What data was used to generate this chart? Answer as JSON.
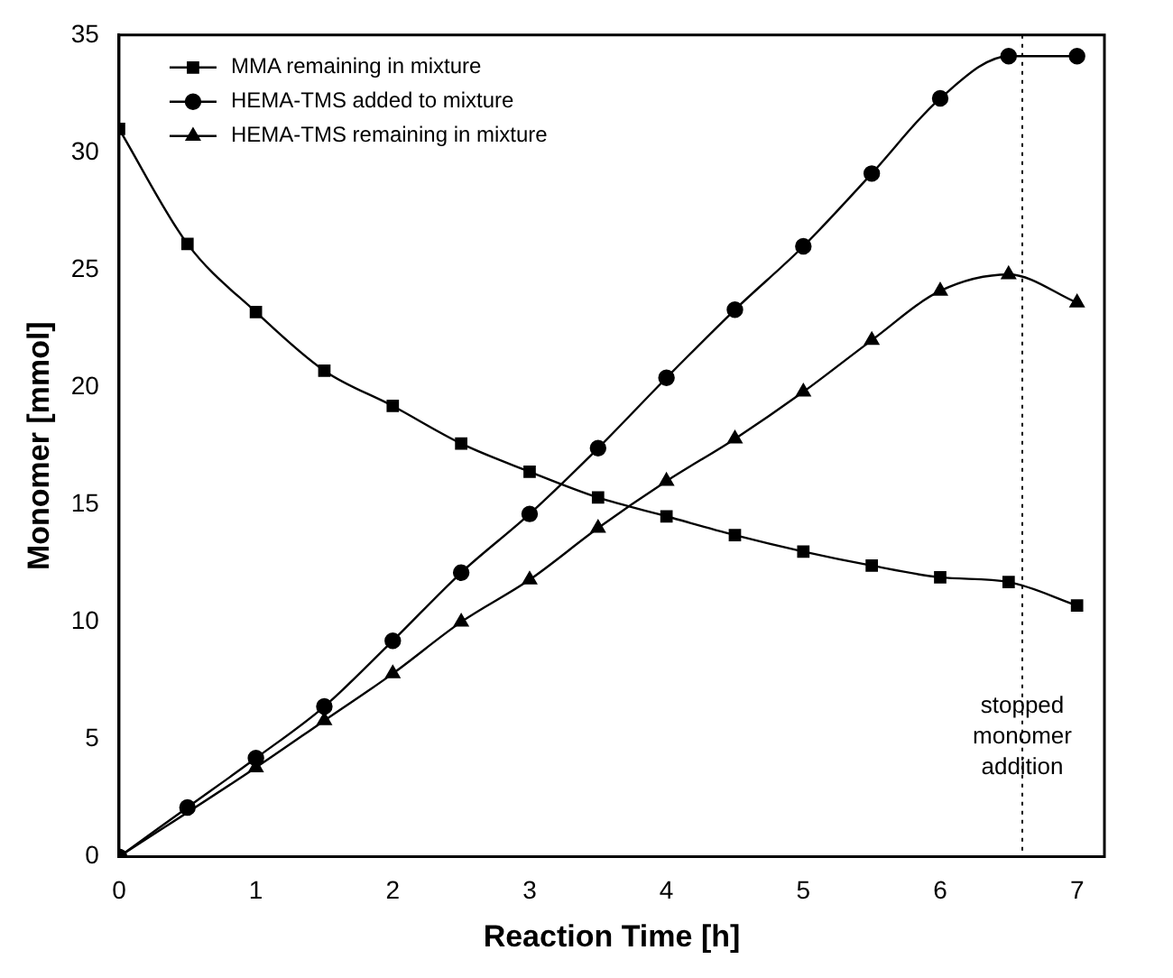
{
  "chart_data": {
    "type": "line",
    "xlabel": "Reaction Time [h]",
    "ylabel": "Monomer [mmol]",
    "x": [
      0,
      0.5,
      1,
      1.5,
      2,
      2.5,
      3,
      3.5,
      4,
      4.5,
      5,
      5.5,
      6,
      6.5,
      7
    ],
    "series": [
      {
        "name": "MMA remaining in mixture",
        "color": "#000000",
        "marker": "square",
        "values": [
          31.0,
          26.1,
          23.2,
          20.7,
          19.2,
          17.6,
          16.4,
          15.3,
          14.5,
          13.7,
          13.0,
          12.4,
          11.9,
          11.7,
          10.7
        ]
      },
      {
        "name": "HEMA-TMS added to mixture",
        "color": "#000000",
        "marker": "circle",
        "values": [
          0,
          2.1,
          4.2,
          6.4,
          9.2,
          12.1,
          14.6,
          17.4,
          20.4,
          23.3,
          26.0,
          29.1,
          32.3,
          34.1,
          34.1
        ]
      },
      {
        "name": "HEMA-TMS remaining in mixture",
        "color": "#000000",
        "marker": "triangle",
        "values": [
          0,
          null,
          3.8,
          5.8,
          7.8,
          10.0,
          11.8,
          14.0,
          16.0,
          17.8,
          19.8,
          22.0,
          24.1,
          24.8,
          23.6
        ]
      }
    ],
    "xlim": [
      0,
      7.2
    ],
    "xticks": [
      0,
      1,
      2,
      3,
      4,
      5,
      6,
      7
    ],
    "ylim": [
      0,
      35
    ],
    "yticks": [
      0,
      5,
      10,
      15,
      20,
      25,
      30,
      35
    ],
    "grid": false,
    "legend": "top left",
    "line_style": "solid",
    "ref_lines": [
      {
        "axis": "x",
        "value": 6.6,
        "label": "stopped monomer addition",
        "color": "#000000",
        "line_style": "dotted"
      }
    ]
  }
}
